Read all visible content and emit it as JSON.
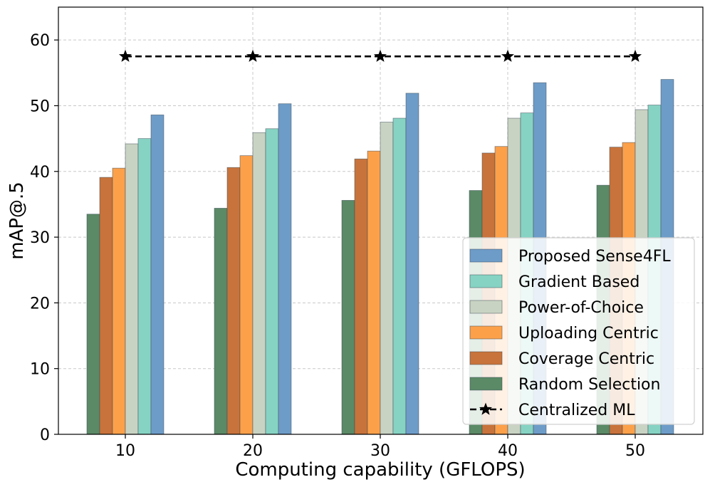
{
  "chart_data": {
    "type": "bar",
    "title": "",
    "xlabel": "Computing capability (GFLOPS)",
    "ylabel": "mAP@.5",
    "categories": [
      "10",
      "20",
      "30",
      "40",
      "50"
    ],
    "ylim": [
      0,
      65
    ],
    "yticks": [
      0,
      10,
      20,
      30,
      40,
      50,
      60
    ],
    "grid": true,
    "legend_position": "bottom-right",
    "series": [
      {
        "name": "Random Selection",
        "color": "#5a8a66",
        "values": [
          33.5,
          34.4,
          35.6,
          37.1,
          37.9
        ]
      },
      {
        "name": "Coverage Centric",
        "color": "#c8733b",
        "values": [
          39.1,
          40.6,
          41.9,
          42.8,
          43.7
        ]
      },
      {
        "name": "Uploading Centric",
        "color": "#fca04a",
        "values": [
          40.5,
          42.4,
          43.1,
          43.8,
          44.4
        ]
      },
      {
        "name": "Power-of-Choice",
        "color": "#c9d3c3",
        "values": [
          44.2,
          45.9,
          47.5,
          48.1,
          49.4
        ]
      },
      {
        "name": "Gradient Based",
        "color": "#86d3c3",
        "values": [
          45.0,
          46.5,
          48.1,
          48.9,
          50.1
        ]
      },
      {
        "name": "Proposed Sense4FL",
        "color": "#6e9cc8",
        "values": [
          48.6,
          50.3,
          51.9,
          53.5,
          54.0
        ]
      }
    ],
    "line_series": {
      "name": "Centralized ML",
      "color": "#000000",
      "values": [
        57.5,
        57.5,
        57.5,
        57.5,
        57.5
      ],
      "marker": "star",
      "style": "dashed"
    },
    "legend_order": [
      "Proposed Sense4FL",
      "Gradient Based",
      "Power-of-Choice",
      "Uploading Centric",
      "Coverage Centric",
      "Random Selection",
      "Centralized ML"
    ]
  }
}
